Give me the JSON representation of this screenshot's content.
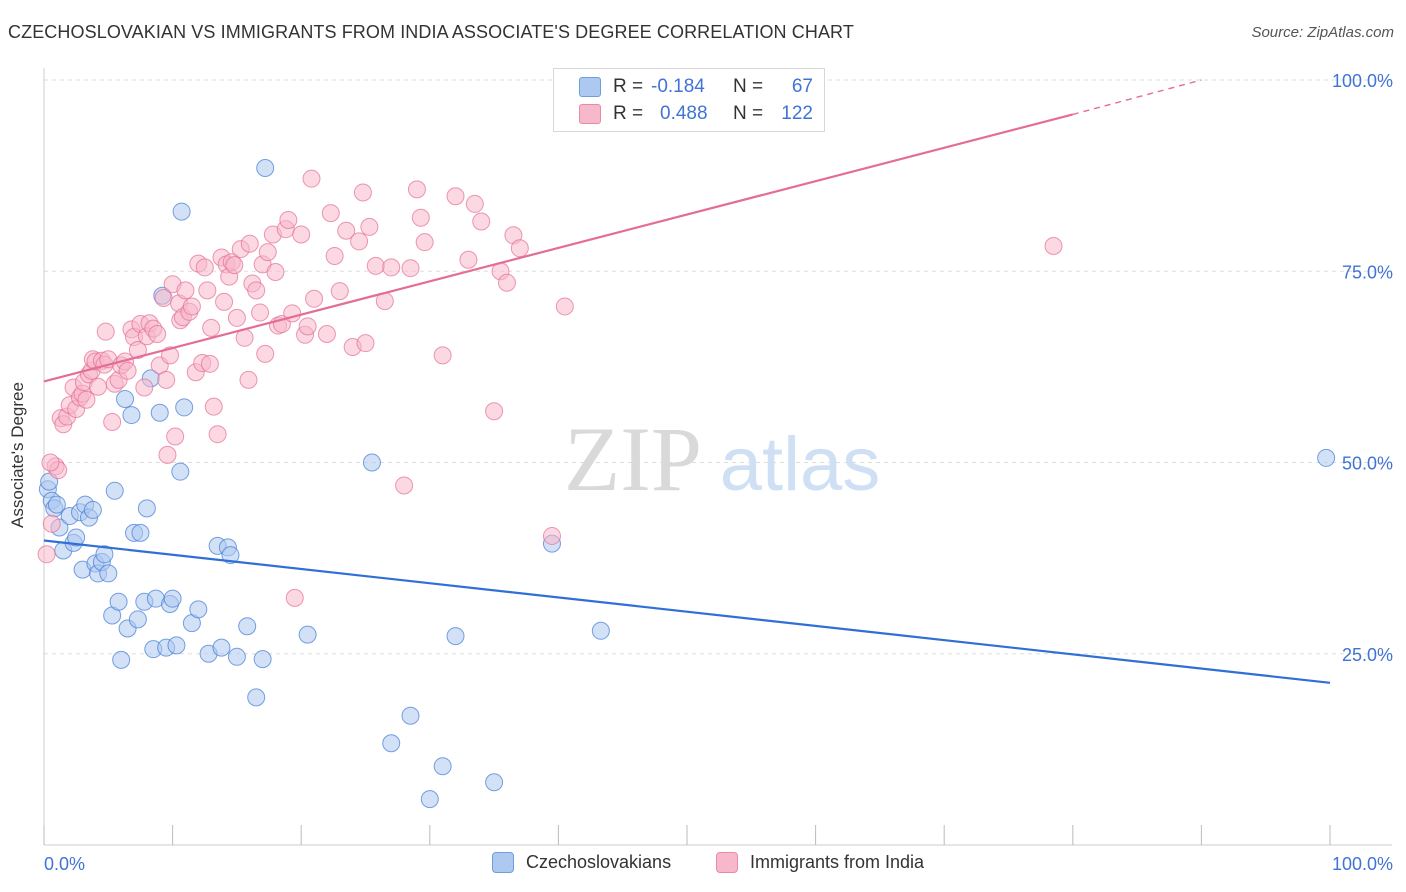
{
  "header": {
    "title": "CZECHOSLOVAKIAN VS IMMIGRANTS FROM INDIA ASSOCIATE'S DEGREE CORRELATION CHART",
    "source": "Source: ZipAtlas.com"
  },
  "watermark": {
    "zip": "ZIP",
    "atlas": "atlas"
  },
  "legend_stats": [
    {
      "r_label": "R =",
      "r_value": "-0.184",
      "n_label": "N =",
      "n_value": "67",
      "color": "#aec9f0"
    },
    {
      "r_label": "R =",
      "r_value": "0.488",
      "n_label": "N =",
      "n_value": "122",
      "color": "#f7b8cb"
    }
  ],
  "chart_data": {
    "type": "scatter",
    "title": "CZECHOSLOVAKIAN VS IMMIGRANTS FROM INDIA ASSOCIATE'S DEGREE CORRELATION CHART",
    "xlabel": "",
    "ylabel": "Associate's Degree",
    "xlim": [
      0,
      100
    ],
    "ylim": [
      0,
      100
    ],
    "x_tick_labels": [
      "0.0%",
      "100.0%"
    ],
    "y_tick_labels": [
      "25.0%",
      "50.0%",
      "75.0%",
      "100.0%"
    ],
    "y_ticks": [
      25,
      50,
      75,
      100
    ],
    "grid": true,
    "legend_position": "bottom",
    "series": [
      {
        "name": "Czechoslovakians",
        "color": "#3f7ad6",
        "fill": "#aec9f0",
        "trend": {
          "x": [
            0,
            100
          ],
          "y": [
            39.8,
            21.2
          ]
        },
        "points": [
          [
            0.3,
            46.5
          ],
          [
            0.6,
            45.0
          ],
          [
            0.8,
            44.0
          ],
          [
            1.2,
            41.5
          ],
          [
            1.5,
            38.5
          ],
          [
            2.0,
            43.0
          ],
          [
            2.3,
            39.5
          ],
          [
            2.5,
            40.2
          ],
          [
            2.8,
            43.5
          ],
          [
            3.0,
            36.0
          ],
          [
            3.2,
            44.5
          ],
          [
            3.5,
            42.8
          ],
          [
            3.8,
            43.8
          ],
          [
            4.0,
            36.8
          ],
          [
            4.2,
            35.5
          ],
          [
            4.5,
            37.0
          ],
          [
            4.7,
            38.0
          ],
          [
            5.0,
            35.5
          ],
          [
            5.3,
            30.0
          ],
          [
            5.5,
            46.3
          ],
          [
            5.8,
            31.8
          ],
          [
            6.0,
            24.2
          ],
          [
            6.3,
            58.3
          ],
          [
            6.5,
            28.3
          ],
          [
            6.8,
            56.2
          ],
          [
            7.0,
            40.8
          ],
          [
            7.3,
            29.5
          ],
          [
            7.5,
            40.8
          ],
          [
            7.8,
            31.8
          ],
          [
            8.0,
            44.0
          ],
          [
            8.3,
            61.0
          ],
          [
            8.5,
            25.6
          ],
          [
            8.7,
            32.2
          ],
          [
            9.0,
            56.5
          ],
          [
            9.2,
            71.8
          ],
          [
            9.5,
            25.8
          ],
          [
            9.8,
            31.5
          ],
          [
            10.0,
            32.2
          ],
          [
            10.3,
            26.1
          ],
          [
            10.6,
            48.8
          ],
          [
            10.7,
            82.8
          ],
          [
            10.9,
            57.2
          ],
          [
            11.5,
            29.0
          ],
          [
            12.0,
            30.8
          ],
          [
            12.8,
            25.0
          ],
          [
            13.5,
            39.1
          ],
          [
            13.8,
            25.8
          ],
          [
            14.3,
            38.9
          ],
          [
            14.5,
            37.9
          ],
          [
            15.0,
            24.6
          ],
          [
            15.8,
            28.6
          ],
          [
            16.5,
            19.3
          ],
          [
            17.0,
            24.3
          ],
          [
            17.2,
            88.5
          ],
          [
            20.5,
            27.5
          ],
          [
            25.5,
            50.0
          ],
          [
            27.0,
            13.3
          ],
          [
            28.5,
            16.9
          ],
          [
            30.0,
            6.0
          ],
          [
            31.0,
            10.3
          ],
          [
            32.0,
            27.3
          ],
          [
            35.0,
            8.2
          ],
          [
            39.5,
            39.4
          ],
          [
            43.3,
            28.0
          ],
          [
            99.7,
            50.6
          ],
          [
            0.4,
            47.5
          ],
          [
            1.0,
            44.5
          ]
        ]
      },
      {
        "name": "Immigrants from India",
        "color": "#e46d96",
        "fill": "#f7b8cb",
        "trend": {
          "x": [
            0,
            80
          ],
          "y": [
            60.6,
            95.5
          ]
        },
        "trend_dashed": {
          "x": [
            80,
            90
          ],
          "y": [
            95.5,
            100.0
          ]
        },
        "points": [
          [
            0.2,
            38.0
          ],
          [
            0.6,
            42.0
          ],
          [
            0.9,
            49.5
          ],
          [
            1.1,
            49.0
          ],
          [
            1.3,
            55.8
          ],
          [
            1.5,
            55.0
          ],
          [
            1.8,
            56.0
          ],
          [
            2.0,
            57.5
          ],
          [
            2.3,
            59.8
          ],
          [
            2.5,
            57.0
          ],
          [
            2.8,
            58.5
          ],
          [
            3.0,
            59.0
          ],
          [
            3.1,
            60.5
          ],
          [
            3.3,
            58.2
          ],
          [
            3.5,
            61.5
          ],
          [
            3.7,
            62.0
          ],
          [
            3.8,
            63.5
          ],
          [
            4.0,
            63.2
          ],
          [
            4.2,
            59.9
          ],
          [
            4.5,
            63.3
          ],
          [
            4.7,
            62.8
          ],
          [
            4.8,
            67.1
          ],
          [
            5.0,
            63.5
          ],
          [
            5.3,
            55.3
          ],
          [
            5.5,
            60.3
          ],
          [
            5.8,
            60.8
          ],
          [
            6.0,
            62.7
          ],
          [
            6.3,
            63.2
          ],
          [
            6.5,
            62.0
          ],
          [
            6.8,
            67.4
          ],
          [
            7.0,
            66.4
          ],
          [
            7.3,
            64.7
          ],
          [
            7.5,
            68.1
          ],
          [
            7.8,
            59.8
          ],
          [
            8.0,
            66.5
          ],
          [
            8.2,
            68.2
          ],
          [
            8.5,
            67.5
          ],
          [
            8.8,
            66.8
          ],
          [
            9.0,
            62.7
          ],
          [
            9.3,
            71.5
          ],
          [
            9.5,
            60.8
          ],
          [
            9.6,
            51.0
          ],
          [
            9.8,
            64.0
          ],
          [
            10.0,
            73.3
          ],
          [
            10.2,
            53.4
          ],
          [
            10.5,
            70.8
          ],
          [
            10.6,
            68.6
          ],
          [
            10.8,
            69.0
          ],
          [
            11.0,
            72.5
          ],
          [
            11.3,
            69.7
          ],
          [
            11.5,
            70.4
          ],
          [
            11.8,
            61.8
          ],
          [
            12.0,
            76.0
          ],
          [
            12.3,
            63.0
          ],
          [
            12.5,
            75.5
          ],
          [
            12.7,
            72.5
          ],
          [
            12.9,
            62.9
          ],
          [
            13.0,
            67.6
          ],
          [
            13.2,
            57.3
          ],
          [
            13.5,
            53.7
          ],
          [
            13.8,
            76.8
          ],
          [
            14.0,
            71.0
          ],
          [
            14.2,
            75.9
          ],
          [
            14.4,
            74.3
          ],
          [
            14.6,
            76.2
          ],
          [
            14.8,
            75.8
          ],
          [
            15.0,
            68.9
          ],
          [
            15.3,
            77.9
          ],
          [
            15.6,
            66.3
          ],
          [
            15.9,
            60.8
          ],
          [
            16.0,
            78.6
          ],
          [
            16.2,
            73.4
          ],
          [
            16.5,
            72.5
          ],
          [
            16.8,
            69.6
          ],
          [
            17.0,
            75.9
          ],
          [
            17.2,
            64.2
          ],
          [
            17.4,
            77.5
          ],
          [
            17.8,
            79.8
          ],
          [
            18.0,
            74.9
          ],
          [
            18.2,
            67.9
          ],
          [
            18.5,
            68.1
          ],
          [
            18.8,
            80.5
          ],
          [
            19.0,
            81.7
          ],
          [
            19.3,
            69.5
          ],
          [
            19.5,
            32.3
          ],
          [
            20.0,
            79.8
          ],
          [
            20.3,
            66.7
          ],
          [
            20.5,
            67.8
          ],
          [
            20.8,
            87.1
          ],
          [
            21.0,
            71.4
          ],
          [
            22.0,
            66.8
          ],
          [
            22.3,
            82.6
          ],
          [
            22.6,
            77.0
          ],
          [
            23.0,
            72.4
          ],
          [
            23.5,
            80.3
          ],
          [
            24.0,
            65.1
          ],
          [
            24.5,
            78.9
          ],
          [
            24.8,
            85.3
          ],
          [
            25.0,
            65.6
          ],
          [
            25.3,
            80.8
          ],
          [
            25.8,
            75.7
          ],
          [
            26.5,
            71.1
          ],
          [
            27.0,
            75.5
          ],
          [
            28.0,
            47.0
          ],
          [
            28.5,
            75.4
          ],
          [
            29.0,
            85.7
          ],
          [
            29.3,
            82.0
          ],
          [
            29.6,
            78.8
          ],
          [
            31.0,
            64.0
          ],
          [
            32.0,
            84.8
          ],
          [
            33.0,
            76.5
          ],
          [
            33.5,
            83.8
          ],
          [
            34.0,
            81.5
          ],
          [
            35.0,
            56.7
          ],
          [
            35.5,
            75.0
          ],
          [
            36.0,
            73.5
          ],
          [
            36.5,
            79.7
          ],
          [
            37.0,
            78.0
          ],
          [
            39.5,
            40.4
          ],
          [
            40.5,
            70.4
          ],
          [
            78.5,
            78.3
          ],
          [
            0.5,
            50.0
          ]
        ]
      }
    ]
  }
}
